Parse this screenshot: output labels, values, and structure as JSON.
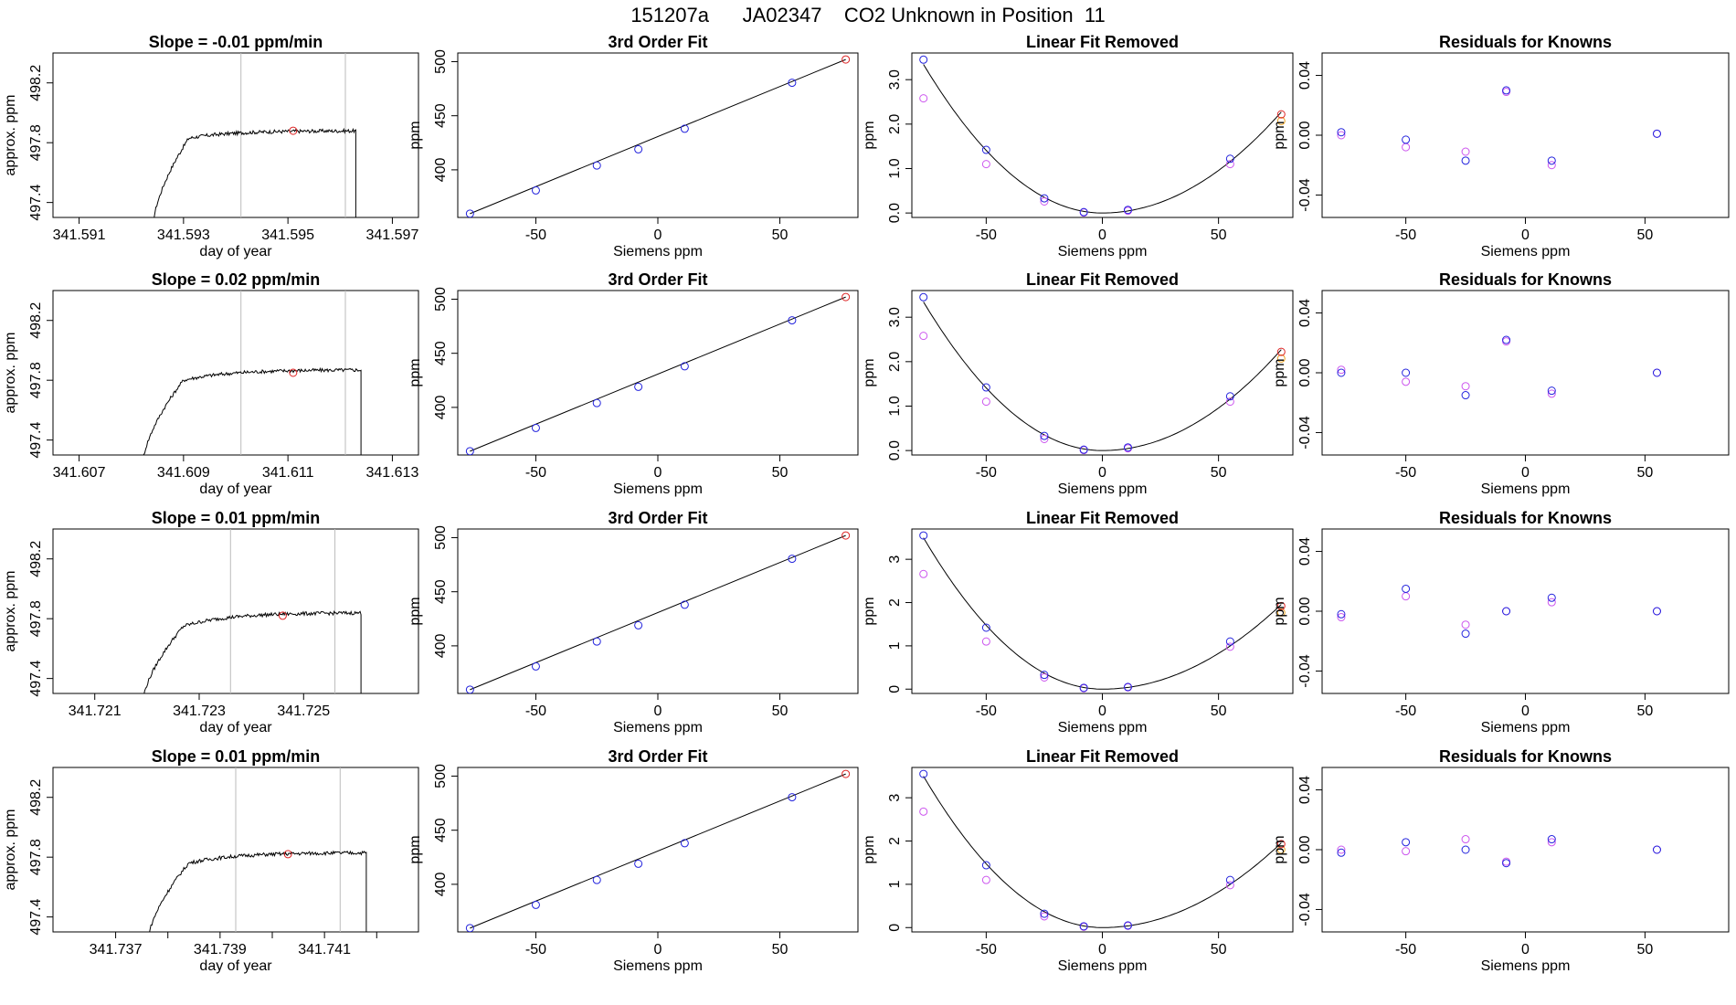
{
  "title": "151207a      JA02347    CO2 Unknown in Position  11",
  "colors": {
    "line": "#000000",
    "vline": "#bbbbbb",
    "blue": "#2222dd",
    "magenta": "#cc55ee",
    "red": "#dd2222",
    "orange": "#e8a020"
  },
  "chart_data": [
    {
      "type": "line",
      "panel": "timeseries",
      "row": 0,
      "title": "Slope =  -0.01  ppm/min",
      "xlabel": "day of year",
      "ylabel": "approx. ppm",
      "xlim": [
        341.5905,
        341.5975
      ],
      "ylim": [
        497.3,
        498.4
      ],
      "xticks": [
        341.591,
        341.593,
        341.595,
        341.597
      ],
      "xticklabels": [
        "341.591",
        "341.593",
        "341.595",
        "341.597"
      ],
      "yticks": [
        497.4,
        497.8,
        498.2
      ],
      "yticklabels": [
        "497.4",
        "497.8",
        "498.2"
      ],
      "vlines": [
        341.5941,
        341.5961
      ],
      "marker": {
        "x": 341.5951,
        "y": 497.88
      },
      "series": {
        "x0": 341.5924,
        "x1": 341.5963,
        "start": 497.2,
        "rise_end": 341.5931,
        "mid_level": 497.83,
        "plateau": 497.88,
        "drop_x": 341.5963,
        "noise": 0.012
      }
    },
    {
      "type": "line",
      "panel": "timeseries",
      "row": 1,
      "title": "Slope =  0.02  ppm/min",
      "xlabel": "day of year",
      "ylabel": "approx. ppm",
      "xlim": [
        341.6065,
        341.6135
      ],
      "ylim": [
        497.3,
        498.4
      ],
      "xticks": [
        341.607,
        341.609,
        341.611,
        341.613
      ],
      "xticklabels": [
        "341.607",
        "341.609",
        "341.611",
        "341.613"
      ],
      "yticks": [
        497.4,
        497.8,
        498.2
      ],
      "yticklabels": [
        "497.4",
        "497.8",
        "498.2"
      ],
      "vlines": [
        341.6101,
        341.6121
      ],
      "marker": {
        "x": 341.6111,
        "y": 497.85
      },
      "series": {
        "x0": 341.6082,
        "x1": 341.6124,
        "start": 497.2,
        "rise_end": 341.609,
        "mid_level": 497.8,
        "plateau": 497.87,
        "drop_x": 341.6124,
        "noise": 0.012
      }
    },
    {
      "type": "line",
      "panel": "timeseries",
      "row": 2,
      "title": "Slope =  0.01  ppm/min",
      "xlabel": "day of year",
      "ylabel": "approx. ppm",
      "xlim": [
        341.7202,
        341.7272
      ],
      "ylim": [
        497.3,
        498.4
      ],
      "xticks": [
        341.721,
        341.723,
        341.725
      ],
      "xticklabels": [
        "341.721",
        "341.723",
        "341.725"
      ],
      "yticks": [
        497.4,
        497.8,
        498.2
      ],
      "yticklabels": [
        "497.4",
        "497.8",
        "498.2"
      ],
      "vlines": [
        341.7236,
        341.7256
      ],
      "marker": {
        "x": 341.7246,
        "y": 497.82
      },
      "series": {
        "x0": 341.7219,
        "x1": 341.7261,
        "start": 497.2,
        "rise_end": 341.7227,
        "mid_level": 497.75,
        "plateau": 497.84,
        "drop_x": 341.7261,
        "noise": 0.012
      }
    },
    {
      "type": "line",
      "panel": "timeseries",
      "row": 3,
      "title": "Slope =  0.01  ppm/min",
      "xlabel": "day of year",
      "ylabel": "approx. ppm",
      "xlim": [
        341.7358,
        341.7428
      ],
      "ylim": [
        497.3,
        498.4
      ],
      "xticks": [
        341.737,
        341.738,
        341.739,
        341.74,
        341.741,
        341.742
      ],
      "xticklabels": [
        "341.737",
        "",
        "341.739",
        "",
        "341.741",
        ""
      ],
      "yticks": [
        497.4,
        497.8,
        498.2
      ],
      "yticklabels": [
        "497.4",
        "497.8",
        "498.2"
      ],
      "vlines": [
        341.7393,
        341.7413
      ],
      "marker": {
        "x": 341.7403,
        "y": 497.82
      },
      "series": {
        "x0": 341.7376,
        "x1": 341.7418,
        "start": 497.2,
        "rise_end": 341.7384,
        "mid_level": 497.76,
        "plateau": 497.83,
        "drop_x": 341.7418,
        "noise": 0.012
      }
    },
    {
      "type": "scatter",
      "panel": "fit3",
      "row": 0,
      "title": "3rd Order Fit",
      "xlabel": "Siemens ppm",
      "ylabel": "ppm",
      "xlim": [
        -82,
        82
      ],
      "ylim": [
        356,
        508
      ],
      "xticks": [
        -50,
        0,
        50
      ],
      "xticklabels": [
        "-50",
        "0",
        "50"
      ],
      "yticks": [
        400,
        450,
        500
      ],
      "yticklabels": [
        "400",
        "450",
        "500"
      ],
      "fit_line": [
        [
          -77,
          359.5
        ],
        [
          77,
          502
        ]
      ],
      "points_blue": [
        [
          -77,
          359.5
        ],
        [
          -50,
          381
        ],
        [
          -25,
          404
        ],
        [
          -8,
          419
        ],
        [
          11,
          438
        ],
        [
          55,
          480.5
        ]
      ],
      "points_red": [
        [
          77,
          502
        ]
      ]
    },
    {
      "type": "scatter",
      "panel": "fit3",
      "row": 1,
      "title": "3rd Order Fit",
      "xlabel": "Siemens ppm",
      "ylabel": "ppm",
      "xlim": [
        -82,
        82
      ],
      "ylim": [
        356,
        508
      ],
      "xticks": [
        -50,
        0,
        50
      ],
      "xticklabels": [
        "-50",
        "0",
        "50"
      ],
      "yticks": [
        400,
        450,
        500
      ],
      "yticklabels": [
        "400",
        "450",
        "500"
      ],
      "fit_line": [
        [
          -77,
          359.5
        ],
        [
          77,
          502
        ]
      ],
      "points_blue": [
        [
          -77,
          359.5
        ],
        [
          -50,
          381
        ],
        [
          -25,
          404
        ],
        [
          -8,
          419
        ],
        [
          11,
          438
        ],
        [
          55,
          480.5
        ]
      ],
      "points_red": [
        [
          77,
          502
        ]
      ]
    },
    {
      "type": "scatter",
      "panel": "fit3",
      "row": 2,
      "title": "3rd Order Fit",
      "xlabel": "Siemens ppm",
      "ylabel": "ppm",
      "xlim": [
        -82,
        82
      ],
      "ylim": [
        356,
        508
      ],
      "xticks": [
        -50,
        0,
        50
      ],
      "xticklabels": [
        "-50",
        "0",
        "50"
      ],
      "yticks": [
        400,
        450,
        500
      ],
      "yticklabels": [
        "400",
        "450",
        "500"
      ],
      "fit_line": [
        [
          -77,
          359.5
        ],
        [
          77,
          502
        ]
      ],
      "points_blue": [
        [
          -77,
          359.5
        ],
        [
          -50,
          381
        ],
        [
          -25,
          404
        ],
        [
          -8,
          419
        ],
        [
          11,
          438
        ],
        [
          55,
          480.5
        ]
      ],
      "points_red": [
        [
          77,
          502
        ]
      ]
    },
    {
      "type": "scatter",
      "panel": "fit3",
      "row": 3,
      "title": "3rd Order Fit",
      "xlabel": "Siemens ppm",
      "ylabel": "ppm",
      "xlim": [
        -82,
        82
      ],
      "ylim": [
        356,
        508
      ],
      "xticks": [
        -50,
        0,
        50
      ],
      "xticklabels": [
        "-50",
        "0",
        "50"
      ],
      "yticks": [
        400,
        450,
        500
      ],
      "yticklabels": [
        "400",
        "450",
        "500"
      ],
      "fit_line": [
        [
          -77,
          359.5
        ],
        [
          77,
          502
        ]
      ],
      "points_blue": [
        [
          -77,
          359.5
        ],
        [
          -50,
          381
        ],
        [
          -25,
          404
        ],
        [
          -8,
          419
        ],
        [
          11,
          438
        ],
        [
          55,
          480.5
        ]
      ],
      "points_red": [
        [
          77,
          502
        ]
      ]
    },
    {
      "type": "scatter",
      "panel": "linfit",
      "row": 0,
      "title": "Linear Fit Removed",
      "xlabel": "Siemens ppm",
      "ylabel": "ppm",
      "xlim": [
        -82,
        82
      ],
      "ylim": [
        -0.1,
        3.6
      ],
      "xticks": [
        -50,
        0,
        50
      ],
      "xticklabels": [
        "-50",
        "0",
        "50"
      ],
      "yticks": [
        0,
        1,
        2,
        3
      ],
      "yticklabels": [
        "0.0",
        "1.0",
        "2.0",
        "3.0"
      ],
      "curve": {
        "x_min": 0,
        "y_min": 0,
        "k_left": 0.000564,
        "k_right": 0.000383,
        "x0": -77,
        "x1": 77
      },
      "points_blue": [
        [
          -77,
          3.45
        ],
        [
          -50,
          1.42
        ],
        [
          -25,
          0.33
        ],
        [
          -8,
          0.02
        ],
        [
          11,
          0.07
        ],
        [
          55,
          1.22
        ]
      ],
      "points_magenta": [
        [
          -77,
          2.58
        ],
        [
          -50,
          1.1
        ],
        [
          -25,
          0.26
        ],
        [
          -8,
          0.01
        ],
        [
          11,
          0.05
        ],
        [
          55,
          1.1
        ]
      ],
      "points_red": [
        [
          77,
          2.22
        ]
      ],
      "points_orange": [
        [
          77,
          2.07
        ]
      ]
    },
    {
      "type": "scatter",
      "panel": "linfit",
      "row": 1,
      "title": "Linear Fit Removed",
      "xlabel": "Siemens ppm",
      "ylabel": "ppm",
      "xlim": [
        -82,
        82
      ],
      "ylim": [
        -0.1,
        3.6
      ],
      "xticks": [
        -50,
        0,
        50
      ],
      "xticklabels": [
        "-50",
        "0",
        "50"
      ],
      "yticks": [
        0,
        1,
        2,
        3
      ],
      "yticklabels": [
        "0.0",
        "1.0",
        "2.0",
        "3.0"
      ],
      "curve": {
        "x_min": 0,
        "y_min": 0,
        "k_left": 0.000564,
        "k_right": 0.000383,
        "x0": -77,
        "x1": 77
      },
      "points_blue": [
        [
          -77,
          3.45
        ],
        [
          -50,
          1.42
        ],
        [
          -25,
          0.33
        ],
        [
          -8,
          0.02
        ],
        [
          11,
          0.07
        ],
        [
          55,
          1.22
        ]
      ],
      "points_magenta": [
        [
          -77,
          2.58
        ],
        [
          -50,
          1.1
        ],
        [
          -25,
          0.26
        ],
        [
          -8,
          0.01
        ],
        [
          11,
          0.05
        ],
        [
          55,
          1.1
        ]
      ],
      "points_red": [
        [
          77,
          2.22
        ]
      ],
      "points_orange": [
        [
          77,
          2.07
        ]
      ]
    },
    {
      "type": "scatter",
      "panel": "linfit",
      "row": 2,
      "title": "Linear Fit Removed",
      "xlabel": "Siemens ppm",
      "ylabel": "ppm",
      "xlim": [
        -82,
        82
      ],
      "ylim": [
        -0.1,
        3.7
      ],
      "xticks": [
        -50,
        0,
        50
      ],
      "xticklabels": [
        "-50",
        "0",
        "50"
      ],
      "yticks": [
        0,
        1,
        2,
        3
      ],
      "yticklabels": [
        "0",
        "1",
        "2",
        "3"
      ],
      "curve": {
        "x_min": 0,
        "y_min": 0,
        "k_left": 0.00059,
        "k_right": 0.00033,
        "x0": -77,
        "x1": 77
      },
      "points_blue": [
        [
          -77,
          3.55
        ],
        [
          -50,
          1.42
        ],
        [
          -25,
          0.33
        ],
        [
          -8,
          0.03
        ],
        [
          11,
          0.05
        ],
        [
          55,
          1.1
        ]
      ],
      "points_magenta": [
        [
          -77,
          2.66
        ],
        [
          -50,
          1.1
        ],
        [
          -25,
          0.27
        ],
        [
          -8,
          0.02
        ],
        [
          11,
          0.04
        ],
        [
          55,
          0.98
        ]
      ],
      "points_red": [
        [
          77,
          1.92
        ]
      ],
      "points_orange": [
        [
          77,
          1.77
        ]
      ]
    },
    {
      "type": "scatter",
      "panel": "linfit",
      "row": 3,
      "title": "Linear Fit Removed",
      "xlabel": "Siemens ppm",
      "ylabel": "ppm",
      "xlim": [
        -82,
        82
      ],
      "ylim": [
        -0.1,
        3.7
      ],
      "xticks": [
        -50,
        0,
        50
      ],
      "xticklabels": [
        "-50",
        "0",
        "50"
      ],
      "yticks": [
        0,
        1,
        2,
        3
      ],
      "yticklabels": [
        "0",
        "1",
        "2",
        "3"
      ],
      "curve": {
        "x_min": 0,
        "y_min": 0,
        "k_left": 0.00059,
        "k_right": 0.00033,
        "x0": -77,
        "x1": 77
      },
      "points_blue": [
        [
          -77,
          3.55
        ],
        [
          -50,
          1.44
        ],
        [
          -25,
          0.32
        ],
        [
          -8,
          0.03
        ],
        [
          11,
          0.05
        ],
        [
          55,
          1.1
        ]
      ],
      "points_magenta": [
        [
          -77,
          2.68
        ],
        [
          -50,
          1.1
        ],
        [
          -25,
          0.26
        ],
        [
          -8,
          0.02
        ],
        [
          11,
          0.04
        ],
        [
          55,
          0.98
        ]
      ],
      "points_red": [
        [
          77,
          1.93
        ]
      ],
      "points_orange": [
        [
          77,
          1.8
        ]
      ]
    },
    {
      "type": "scatter",
      "panel": "resid",
      "row": 0,
      "title": "Residuals for Knowns",
      "xlabel": "Siemens ppm",
      "ylabel": "ppm",
      "xlim": [
        -85,
        85
      ],
      "ylim": [
        -0.055,
        0.055
      ],
      "xticks": [
        -50,
        0,
        50
      ],
      "xticklabels": [
        "-50",
        "0",
        "50"
      ],
      "yticks": [
        -0.04,
        0,
        0.04
      ],
      "yticklabels": [
        "-0.04",
        "0.00",
        "0.04"
      ],
      "points_blue": [
        [
          -77,
          0.002
        ],
        [
          -50,
          -0.003
        ],
        [
          -25,
          -0.017
        ],
        [
          -8,
          0.03
        ],
        [
          11,
          -0.017
        ],
        [
          55,
          0.001
        ]
      ],
      "points_magenta": [
        [
          -77,
          0.0
        ],
        [
          -50,
          -0.008
        ],
        [
          -25,
          -0.011
        ],
        [
          -8,
          0.029
        ],
        [
          11,
          -0.02
        ],
        [
          55,
          0.001
        ]
      ]
    },
    {
      "type": "scatter",
      "panel": "resid",
      "row": 1,
      "title": "Residuals for Knowns",
      "xlabel": "Siemens ppm",
      "ylabel": "ppm",
      "xlim": [
        -85,
        85
      ],
      "ylim": [
        -0.055,
        0.055
      ],
      "xticks": [
        -50,
        0,
        50
      ],
      "xticklabels": [
        "-50",
        "0",
        "50"
      ],
      "yticks": [
        -0.04,
        0,
        0.04
      ],
      "yticklabels": [
        "-0.04",
        "0.00",
        "0.04"
      ],
      "points_blue": [
        [
          -77,
          0.0
        ],
        [
          -50,
          0.0
        ],
        [
          -25,
          -0.015
        ],
        [
          -8,
          0.022
        ],
        [
          11,
          -0.012
        ],
        [
          55,
          0.0
        ]
      ],
      "points_magenta": [
        [
          -77,
          0.002
        ],
        [
          -50,
          -0.006
        ],
        [
          -25,
          -0.009
        ],
        [
          -8,
          0.021
        ],
        [
          11,
          -0.014
        ],
        [
          55,
          0.0
        ]
      ]
    },
    {
      "type": "scatter",
      "panel": "resid",
      "row": 2,
      "title": "Residuals for Knowns",
      "xlabel": "Siemens ppm",
      "ylabel": "ppm",
      "xlim": [
        -85,
        85
      ],
      "ylim": [
        -0.055,
        0.055
      ],
      "xticks": [
        -50,
        0,
        50
      ],
      "xticklabels": [
        "-50",
        "0",
        "50"
      ],
      "yticks": [
        -0.04,
        0,
        0.04
      ],
      "yticklabels": [
        "-0.04",
        "0.00",
        "0.04"
      ],
      "points_blue": [
        [
          -77,
          -0.002
        ],
        [
          -50,
          0.015
        ],
        [
          -25,
          -0.015
        ],
        [
          -8,
          0.0
        ],
        [
          11,
          0.009
        ],
        [
          55,
          0.0
        ]
      ],
      "points_magenta": [
        [
          -77,
          -0.004
        ],
        [
          -50,
          0.01
        ],
        [
          -25,
          -0.009
        ],
        [
          -8,
          0.0
        ],
        [
          11,
          0.006
        ],
        [
          55,
          0.0
        ]
      ]
    },
    {
      "type": "scatter",
      "panel": "resid",
      "row": 3,
      "title": "Residuals for Knowns",
      "xlabel": "Siemens ppm",
      "ylabel": "ppm",
      "xlim": [
        -85,
        85
      ],
      "ylim": [
        -0.055,
        0.055
      ],
      "xticks": [
        -50,
        0,
        50
      ],
      "xticklabels": [
        "-50",
        "0",
        "50"
      ],
      "yticks": [
        -0.04,
        0,
        0.04
      ],
      "yticklabels": [
        "-0.04",
        "0.00",
        "0.04"
      ],
      "points_blue": [
        [
          -77,
          -0.002
        ],
        [
          -50,
          0.005
        ],
        [
          -25,
          0.0
        ],
        [
          -8,
          -0.009
        ],
        [
          11,
          0.007
        ],
        [
          55,
          0.0
        ]
      ],
      "points_magenta": [
        [
          -77,
          0.0
        ],
        [
          -50,
          -0.001
        ],
        [
          -25,
          0.007
        ],
        [
          -8,
          -0.008
        ],
        [
          11,
          0.005
        ],
        [
          55,
          0.0
        ]
      ]
    }
  ]
}
